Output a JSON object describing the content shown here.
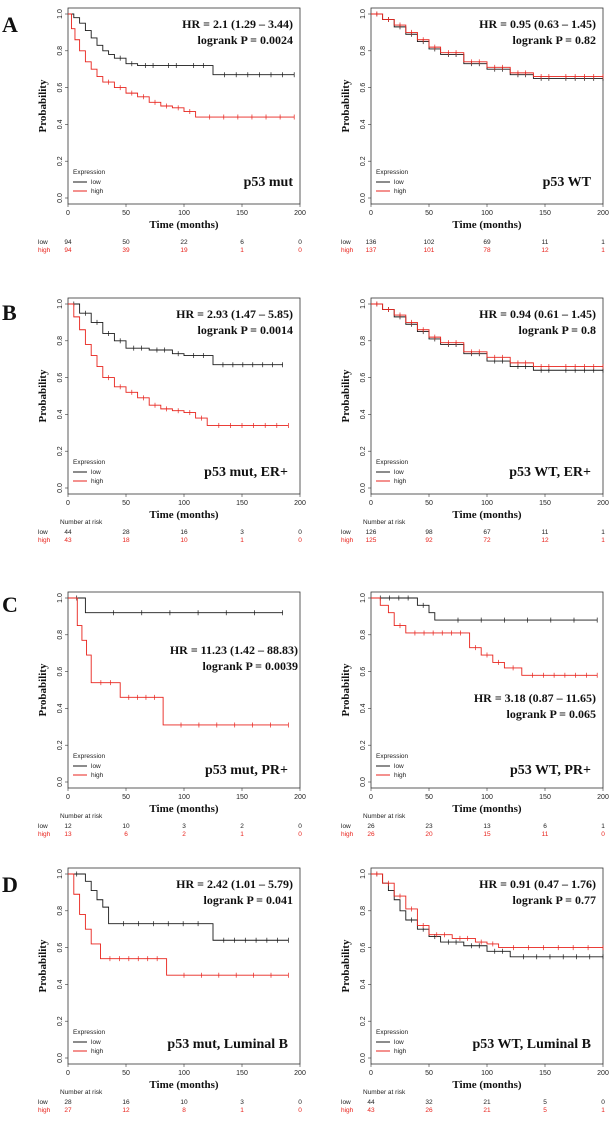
{
  "figure": {
    "panel_letters": [
      "A",
      "B",
      "C",
      "D"
    ]
  },
  "colors": {
    "low": "#1a1a1a",
    "high": "#e8231c"
  },
  "chart_data": [
    {
      "type": "line",
      "panel": "A",
      "subtitle": "p53 mut",
      "stat_hr": "HR = 2.1 (1.29 – 3.44)",
      "stat_p": "logrank P = 0.0024",
      "xlabel": "Time (months)",
      "ylabel": "Probability",
      "xlim": [
        0,
        200
      ],
      "ylim": [
        0,
        1
      ],
      "xticks": [
        "0",
        "50",
        "100",
        "150",
        "200"
      ],
      "yticks": [
        "0.0",
        "0.2",
        "0.4",
        "0.6",
        "0.8",
        "1.0"
      ],
      "legend": {
        "title": "Expression",
        "low": "low",
        "high": "high"
      },
      "risk": {
        "title": "",
        "low": [
          "94",
          "50",
          "22",
          "6",
          "0"
        ],
        "high": [
          "94",
          "39",
          "19",
          "1",
          "0"
        ]
      },
      "series": [
        {
          "name": "low",
          "x": [
            0,
            5,
            10,
            15,
            20,
            25,
            30,
            35,
            40,
            50,
            60,
            80,
            100,
            125,
            195
          ],
          "y": [
            1.0,
            0.98,
            0.95,
            0.91,
            0.87,
            0.83,
            0.8,
            0.78,
            0.76,
            0.73,
            0.72,
            0.72,
            0.72,
            0.67,
            0.67
          ]
        },
        {
          "name": "high",
          "x": [
            0,
            3,
            6,
            10,
            15,
            20,
            25,
            30,
            40,
            50,
            60,
            70,
            80,
            90,
            100,
            110,
            195
          ],
          "y": [
            1.0,
            0.92,
            0.86,
            0.8,
            0.74,
            0.7,
            0.66,
            0.63,
            0.6,
            0.57,
            0.55,
            0.52,
            0.5,
            0.49,
            0.47,
            0.44,
            0.44
          ]
        }
      ]
    },
    {
      "type": "line",
      "panel": "A",
      "subtitle": "p53 WT",
      "stat_hr": "HR = 0.95 (0.63 – 1.45)",
      "stat_p": "logrank P = 0.82",
      "xlabel": "Time (months)",
      "ylabel": "Probability",
      "xlim": [
        0,
        200
      ],
      "ylim": [
        0,
        1
      ],
      "xticks": [
        "0",
        "50",
        "100",
        "150",
        "200"
      ],
      "yticks": [
        "0.0",
        "0.2",
        "0.4",
        "0.6",
        "0.8",
        "1.0"
      ],
      "legend": {
        "title": "Expression",
        "low": "low",
        "high": "high"
      },
      "risk": {
        "title": "",
        "low": [
          "136",
          "102",
          "69",
          "11",
          "1"
        ],
        "high": [
          "137",
          "101",
          "78",
          "12",
          "1"
        ]
      },
      "series": [
        {
          "name": "low",
          "x": [
            0,
            10,
            20,
            30,
            40,
            50,
            60,
            80,
            100,
            120,
            140,
            160,
            200
          ],
          "y": [
            1.0,
            0.97,
            0.93,
            0.89,
            0.85,
            0.81,
            0.78,
            0.73,
            0.7,
            0.67,
            0.65,
            0.65,
            0.65
          ]
        },
        {
          "name": "high",
          "x": [
            0,
            10,
            20,
            30,
            40,
            50,
            60,
            80,
            100,
            120,
            140,
            160,
            200
          ],
          "y": [
            1.0,
            0.97,
            0.94,
            0.9,
            0.86,
            0.82,
            0.79,
            0.74,
            0.71,
            0.68,
            0.66,
            0.66,
            0.66
          ]
        }
      ]
    },
    {
      "type": "line",
      "panel": "B",
      "subtitle": "p53 mut, ER+",
      "stat_hr": "HR = 2.93 (1.47 – 5.85)",
      "stat_p": "logrank P = 0.0014",
      "xlabel": "Time (months)",
      "ylabel": "Probability",
      "xlim": [
        0,
        200
      ],
      "ylim": [
        0,
        1
      ],
      "xticks": [
        "0",
        "50",
        "100",
        "150",
        "200"
      ],
      "yticks": [
        "0.0",
        "0.2",
        "0.4",
        "0.6",
        "0.8",
        "1.0"
      ],
      "legend": {
        "title": "Expression",
        "low": "low",
        "high": "high"
      },
      "risk": {
        "title": "Number at risk",
        "low": [
          "44",
          "28",
          "16",
          "3",
          "0"
        ],
        "high": [
          "43",
          "18",
          "10",
          "1",
          "0"
        ]
      },
      "series": [
        {
          "name": "low",
          "x": [
            0,
            10,
            20,
            30,
            40,
            50,
            70,
            90,
            100,
            125,
            185
          ],
          "y": [
            1.0,
            0.95,
            0.9,
            0.84,
            0.8,
            0.76,
            0.75,
            0.73,
            0.72,
            0.67,
            0.67
          ]
        },
        {
          "name": "high",
          "x": [
            0,
            5,
            10,
            15,
            20,
            25,
            30,
            40,
            50,
            60,
            70,
            80,
            90,
            100,
            110,
            120,
            190
          ],
          "y": [
            1.0,
            0.93,
            0.86,
            0.78,
            0.72,
            0.66,
            0.6,
            0.55,
            0.52,
            0.49,
            0.45,
            0.43,
            0.42,
            0.41,
            0.38,
            0.34,
            0.34
          ]
        }
      ]
    },
    {
      "type": "line",
      "panel": "B",
      "subtitle": "p53 WT, ER+",
      "stat_hr": "HR = 0.94 (0.61 – 1.45)",
      "stat_p": "logrank P = 0.8",
      "xlabel": "Time (months)",
      "ylabel": "Probability",
      "xlim": [
        0,
        200
      ],
      "ylim": [
        0,
        1
      ],
      "xticks": [
        "0",
        "50",
        "100",
        "150",
        "200"
      ],
      "yticks": [
        "0.0",
        "0.2",
        "0.4",
        "0.6",
        "0.8",
        "1.0"
      ],
      "legend": {
        "title": "Expression",
        "low": "low",
        "high": "high"
      },
      "risk": {
        "title": "Number at risk",
        "low": [
          "126",
          "98",
          "67",
          "11",
          "1"
        ],
        "high": [
          "125",
          "92",
          "72",
          "12",
          "1"
        ]
      },
      "series": [
        {
          "name": "low",
          "x": [
            0,
            10,
            20,
            30,
            40,
            50,
            60,
            80,
            100,
            120,
            140,
            160,
            200
          ],
          "y": [
            1.0,
            0.97,
            0.93,
            0.89,
            0.85,
            0.81,
            0.78,
            0.73,
            0.69,
            0.66,
            0.64,
            0.64,
            0.64
          ]
        },
        {
          "name": "high",
          "x": [
            0,
            10,
            20,
            30,
            40,
            50,
            60,
            80,
            100,
            120,
            140,
            160,
            200
          ],
          "y": [
            1.0,
            0.97,
            0.94,
            0.9,
            0.86,
            0.82,
            0.79,
            0.74,
            0.71,
            0.68,
            0.66,
            0.66,
            0.66
          ]
        }
      ]
    },
    {
      "type": "line",
      "panel": "C",
      "subtitle": "p53 mut, PR+",
      "stat_hr": "HR = 11.23 (1.42 – 88.83)",
      "stat_p": "logrank P = 0.0039",
      "xlabel": "Time (months)",
      "ylabel": "Probability",
      "xlim": [
        0,
        200
      ],
      "ylim": [
        0,
        1
      ],
      "xticks": [
        "0",
        "50",
        "100",
        "150",
        "200"
      ],
      "yticks": [
        "0.0",
        "0.2",
        "0.4",
        "0.6",
        "0.8",
        "1.0"
      ],
      "legend": {
        "title": "Expression",
        "low": "low",
        "high": "high"
      },
      "risk": {
        "title": "Number at risk",
        "low": [
          "12",
          "10",
          "3",
          "2",
          "0"
        ],
        "high": [
          "13",
          "6",
          "2",
          "1",
          "0"
        ]
      },
      "series": [
        {
          "name": "low",
          "x": [
            0,
            15,
            185
          ],
          "y": [
            1.0,
            0.92,
            0.92
          ]
        },
        {
          "name": "high",
          "x": [
            0,
            8,
            12,
            16,
            20,
            45,
            82,
            190
          ],
          "y": [
            1.0,
            0.85,
            0.77,
            0.69,
            0.54,
            0.46,
            0.31,
            0.31
          ]
        }
      ]
    },
    {
      "type": "line",
      "panel": "C",
      "subtitle": "p53 WT, PR+",
      "stat_hr": "HR = 3.18 (0.87 – 11.65)",
      "stat_p": "logrank P = 0.065",
      "xlabel": "Time (months)",
      "ylabel": "Probability",
      "xlim": [
        0,
        200
      ],
      "ylim": [
        0,
        1
      ],
      "xticks": [
        "0",
        "50",
        "100",
        "150",
        "200"
      ],
      "yticks": [
        "0.0",
        "0.2",
        "0.4",
        "0.6",
        "0.8",
        "1.0"
      ],
      "legend": {
        "title": "Expression",
        "low": "low",
        "high": "high"
      },
      "risk": {
        "title": "Number at risk",
        "low": [
          "26",
          "23",
          "13",
          "6",
          "1"
        ],
        "high": [
          "26",
          "20",
          "15",
          "11",
          "0"
        ]
      },
      "series": [
        {
          "name": "low",
          "x": [
            0,
            40,
            50,
            55,
            195
          ],
          "y": [
            1.0,
            0.96,
            0.92,
            0.88,
            0.88
          ]
        },
        {
          "name": "high",
          "x": [
            0,
            8,
            15,
            20,
            30,
            85,
            95,
            105,
            115,
            130,
            195
          ],
          "y": [
            1.0,
            0.96,
            0.92,
            0.85,
            0.81,
            0.73,
            0.69,
            0.65,
            0.62,
            0.58,
            0.58
          ]
        }
      ]
    },
    {
      "type": "line",
      "panel": "D",
      "subtitle": "p53 mut, Luminal B",
      "stat_hr": "HR = 2.42 (1.01 – 5.79)",
      "stat_p": "logrank P = 0.041",
      "xlabel": "Time (months)",
      "ylabel": "Probability",
      "xlim": [
        0,
        200
      ],
      "ylim": [
        0,
        1
      ],
      "xticks": [
        "0",
        "50",
        "100",
        "150",
        "200"
      ],
      "yticks": [
        "0.0",
        "0.2",
        "0.4",
        "0.6",
        "0.8",
        "1.0"
      ],
      "legend": {
        "title": "Expression",
        "low": "low",
        "high": "high"
      },
      "risk": {
        "title": "Number at risk",
        "low": [
          "28",
          "16",
          "10",
          "3",
          "0"
        ],
        "high": [
          "27",
          "12",
          "8",
          "1",
          "0"
        ]
      },
      "series": [
        {
          "name": "low",
          "x": [
            0,
            15,
            20,
            25,
            30,
            35,
            125,
            190
          ],
          "y": [
            1.0,
            0.96,
            0.91,
            0.86,
            0.82,
            0.73,
            0.64,
            0.64
          ]
        },
        {
          "name": "high",
          "x": [
            0,
            5,
            10,
            15,
            20,
            28,
            85,
            190
          ],
          "y": [
            1.0,
            0.89,
            0.78,
            0.7,
            0.62,
            0.54,
            0.45,
            0.45
          ]
        }
      ]
    },
    {
      "type": "line",
      "panel": "D",
      "subtitle": "p53 WT, Luminal B",
      "stat_hr": "HR = 0.91 (0.47 – 1.76)",
      "stat_p": "logrank P = 0.77",
      "xlabel": "Time (months)",
      "ylabel": "Probability",
      "xlim": [
        0,
        200
      ],
      "ylim": [
        0,
        1
      ],
      "xticks": [
        "0",
        "50",
        "100",
        "150",
        "200"
      ],
      "yticks": [
        "0.0",
        "0.2",
        "0.4",
        "0.6",
        "0.8",
        "1.0"
      ],
      "legend": {
        "title": "Expression",
        "low": "low",
        "high": "high"
      },
      "risk": {
        "title": "Number at risk",
        "low": [
          "44",
          "32",
          "21",
          "5",
          "0"
        ],
        "high": [
          "43",
          "26",
          "21",
          "5",
          "1"
        ]
      },
      "series": [
        {
          "name": "low",
          "x": [
            0,
            10,
            15,
            20,
            25,
            30,
            40,
            50,
            60,
            80,
            100,
            120,
            200
          ],
          "y": [
            1.0,
            0.95,
            0.91,
            0.86,
            0.8,
            0.75,
            0.7,
            0.66,
            0.63,
            0.61,
            0.58,
            0.55,
            0.55
          ]
        },
        {
          "name": "high",
          "x": [
            0,
            10,
            20,
            30,
            40,
            50,
            70,
            90,
            100,
            110,
            200
          ],
          "y": [
            1.0,
            0.95,
            0.88,
            0.81,
            0.72,
            0.67,
            0.65,
            0.63,
            0.62,
            0.6,
            0.6
          ]
        }
      ]
    }
  ]
}
